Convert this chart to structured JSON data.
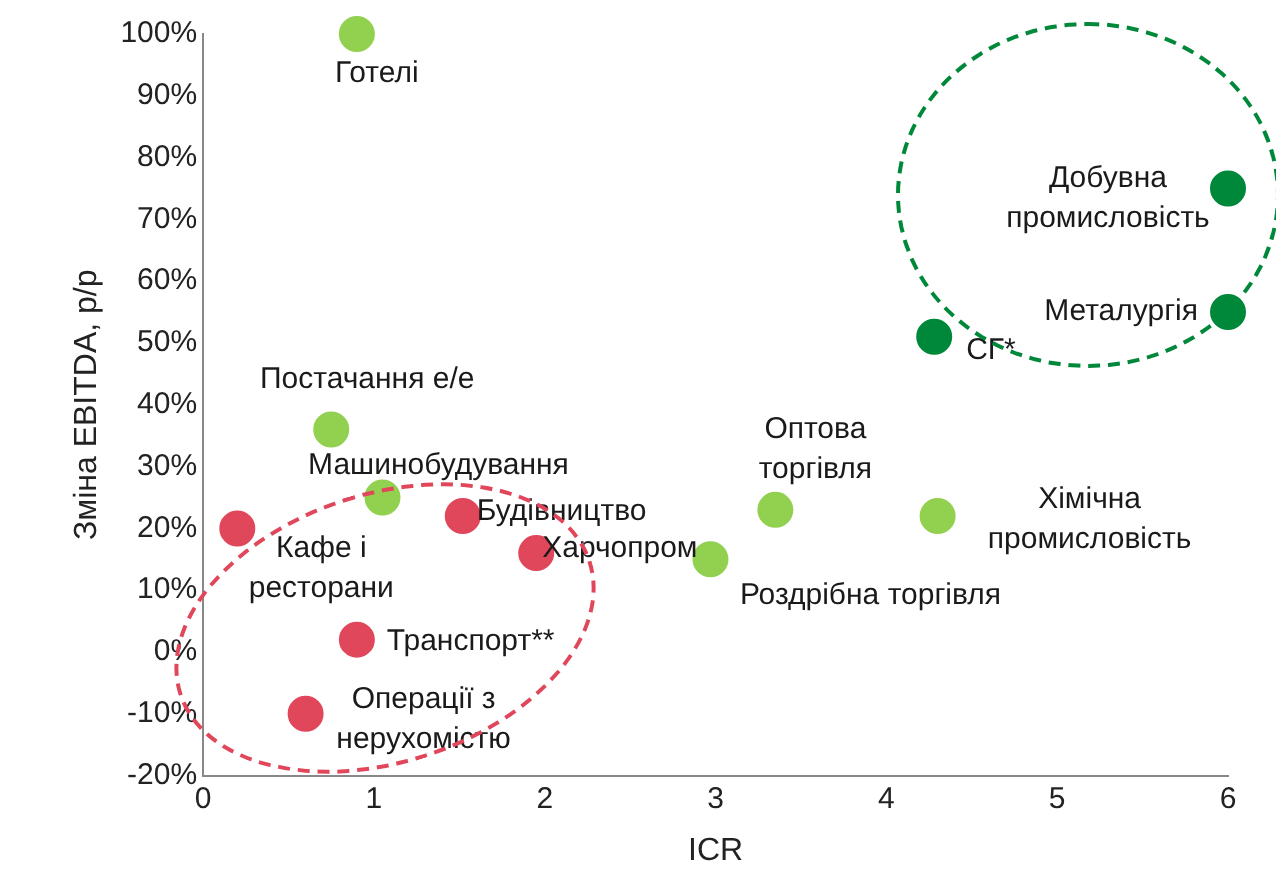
{
  "chart_data": {
    "type": "scatter",
    "xlabel": "ICR",
    "ylabel": "Зміна EBITDA, р/р",
    "series": [
      {
        "color": "#92d050",
        "x": [
          0.9,
          0.75,
          1.05,
          3.35,
          4.3,
          2.97
        ],
        "values": [
          100,
          36,
          25,
          23,
          22,
          15
        ]
      },
      {
        "color": "#00883a",
        "x": [
          6,
          6,
          4.28
        ],
        "values": [
          75,
          55,
          51
        ]
      },
      {
        "color": "#e0475b",
        "x": [
          0.2,
          1.52,
          1.95,
          0.9,
          0.6
        ],
        "values": [
          20,
          22,
          16,
          2,
          -10
        ]
      }
    ],
    "xlim": [
      0,
      6
    ],
    "xticks": [
      0,
      1,
      2,
      3,
      4,
      5,
      6
    ],
    "ylim": [
      -20,
      100
    ],
    "yticks": [
      {
        "value": -20,
        "label": "-20%"
      },
      {
        "value": -10,
        "label": "-10%"
      },
      {
        "value": 0,
        "label": "0%"
      },
      {
        "value": 10,
        "label": "10%"
      },
      {
        "value": 20,
        "label": "20%"
      },
      {
        "value": 30,
        "label": "30%"
      },
      {
        "value": 40,
        "label": "40%"
      },
      {
        "value": 50,
        "label": "50%"
      },
      {
        "value": 60,
        "label": "60%"
      },
      {
        "value": 70,
        "label": "70%"
      },
      {
        "value": 80,
        "label": "80%"
      },
      {
        "value": 90,
        "label": "90%"
      },
      {
        "value": 100,
        "label": "100%"
      }
    ],
    "grid": false,
    "legend": false,
    "marker": "circle",
    "annotations": [
      {
        "text": "Готелі",
        "x": 0.9,
        "y": 100
      },
      {
        "text": "Постачання е/е",
        "x": 0.75,
        "y": 36
      },
      {
        "text": "Машинобудування",
        "x": 1.05,
        "y": 25
      },
      {
        "text": "Оптова\nторгівля",
        "x": 3.35,
        "y": 23
      },
      {
        "text": "Хімічна\nпромисловість",
        "x": 4.3,
        "y": 22
      },
      {
        "text": "Роздрібна торгівля",
        "x": 2.97,
        "y": 15
      },
      {
        "text": "Добувна\nпромисловість",
        "x": 6,
        "y": 75
      },
      {
        "text": "Металургія",
        "x": 6,
        "y": 55
      },
      {
        "text": "СГ*",
        "x": 4.28,
        "y": 51
      },
      {
        "text": "Кафе і\nресторани",
        "x": 0.2,
        "y": 20
      },
      {
        "text": "Будівництво",
        "x": 1.52,
        "y": 22
      },
      {
        "text": "Харчопром",
        "x": 1.95,
        "y": 16
      },
      {
        "text": "Транспорт**",
        "x": 0.9,
        "y": 2
      },
      {
        "text": "Операції з\nнерухомістю",
        "x": 0.6,
        "y": -10
      }
    ]
  }
}
